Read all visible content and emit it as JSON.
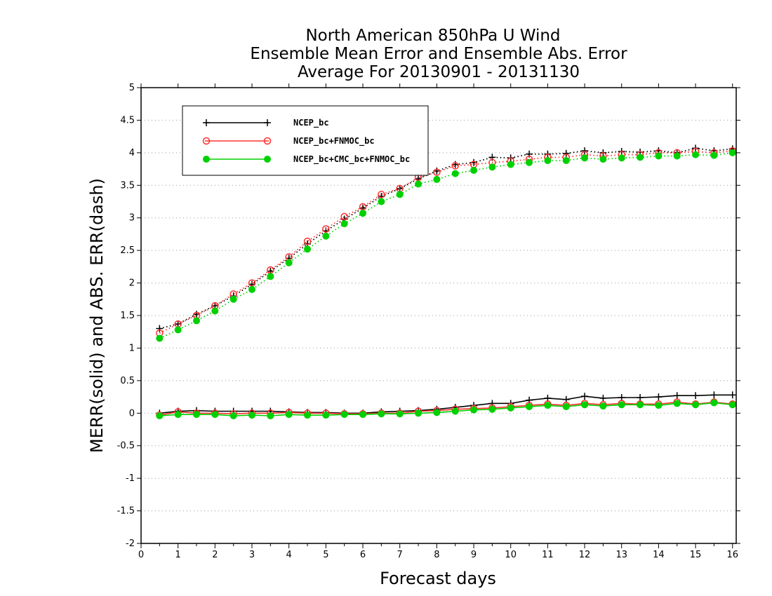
{
  "chart_data": {
    "type": "line",
    "title": [
      "North American 850hPa U Wind",
      "Ensemble Mean Error and Ensemble Abs. Error",
      "Average For 20130901 - 20131130"
    ],
    "xlabel": "Forecast days",
    "ylabel": "MERR(solid) and ABS. ERR(dash)",
    "xlim": [
      0,
      16.1
    ],
    "ylim": [
      -2,
      5
    ],
    "xticks": [
      "0",
      "1",
      "2",
      "3",
      "4",
      "5",
      "6",
      "7",
      "8",
      "9",
      "10",
      "11",
      "12",
      "13",
      "14",
      "15",
      "16"
    ],
    "yticks": [
      "5",
      "4.5",
      "4",
      "3.5",
      "3",
      "2.5",
      "2",
      "1.5",
      "1",
      "0.5",
      "0",
      "-0.5",
      "-1",
      "-1.5",
      "-2"
    ],
    "grid": "horizontal dotted",
    "legend_position": "top-left",
    "x": [
      0.5,
      1,
      1.5,
      2,
      2.5,
      3,
      3.5,
      4,
      4.5,
      5,
      5.5,
      6,
      6.5,
      7,
      7.5,
      8,
      8.5,
      9,
      9.5,
      10,
      10.5,
      11,
      11.5,
      12,
      12.5,
      13,
      13.5,
      14,
      14.5,
      15,
      15.5,
      16
    ],
    "series": [
      {
        "name": "NCEP_bc",
        "color": "#000000",
        "marker": "plus",
        "merr": [
          0.0,
          0.03,
          0.04,
          0.03,
          0.03,
          0.03,
          0.03,
          0.02,
          0.01,
          0.01,
          0.0,
          0.0,
          0.02,
          0.03,
          0.04,
          0.06,
          0.09,
          0.12,
          0.15,
          0.15,
          0.2,
          0.23,
          0.21,
          0.26,
          0.23,
          0.24,
          0.24,
          0.25,
          0.27,
          0.27,
          0.28,
          0.28
        ],
        "abs_err": [
          1.3,
          1.37,
          1.52,
          1.65,
          1.8,
          1.98,
          2.18,
          2.38,
          2.6,
          2.8,
          2.98,
          3.15,
          3.33,
          3.45,
          3.6,
          3.72,
          3.82,
          3.85,
          3.93,
          3.92,
          3.98,
          3.98,
          3.99,
          4.03,
          4.0,
          4.02,
          4.01,
          4.03,
          4.0,
          4.07,
          4.03,
          4.06
        ]
      },
      {
        "name": "NCEP_bc+FNMOC_bc",
        "color": "#ff3030",
        "marker": "open-circle",
        "merr": [
          -0.03,
          0.02,
          0.0,
          0.0,
          -0.01,
          0.0,
          0.0,
          0.01,
          0.0,
          0.0,
          -0.01,
          -0.01,
          0.0,
          0.0,
          0.03,
          0.04,
          0.06,
          0.07,
          0.08,
          0.1,
          0.12,
          0.14,
          0.12,
          0.15,
          0.13,
          0.15,
          0.14,
          0.14,
          0.17,
          0.14,
          0.17,
          0.14
        ],
        "abs_err": [
          1.23,
          1.37,
          1.5,
          1.65,
          1.83,
          2.0,
          2.2,
          2.4,
          2.64,
          2.83,
          3.02,
          3.17,
          3.36,
          3.45,
          3.62,
          3.7,
          3.8,
          3.82,
          3.85,
          3.87,
          3.9,
          3.93,
          3.93,
          3.97,
          3.95,
          3.97,
          3.97,
          4.0,
          4.0,
          4.02,
          4.0,
          4.03
        ]
      },
      {
        "name": "NCEP_bc+CMC_bc+FNMOC_bc",
        "color": "#00d000",
        "marker": "filled-circle",
        "merr": [
          -0.04,
          -0.02,
          -0.02,
          -0.02,
          -0.04,
          -0.03,
          -0.04,
          -0.02,
          -0.03,
          -0.03,
          -0.02,
          -0.02,
          -0.01,
          -0.01,
          0.0,
          0.01,
          0.03,
          0.05,
          0.06,
          0.08,
          0.1,
          0.12,
          0.1,
          0.13,
          0.11,
          0.13,
          0.13,
          0.12,
          0.15,
          0.13,
          0.16,
          0.13
        ],
        "abs_err": [
          1.15,
          1.28,
          1.42,
          1.57,
          1.75,
          1.9,
          2.1,
          2.31,
          2.52,
          2.72,
          2.91,
          3.07,
          3.25,
          3.36,
          3.52,
          3.59,
          3.68,
          3.73,
          3.78,
          3.82,
          3.85,
          3.88,
          3.88,
          3.92,
          3.9,
          3.92,
          3.93,
          3.95,
          3.95,
          3.97,
          3.96,
          4.0
        ]
      }
    ]
  }
}
